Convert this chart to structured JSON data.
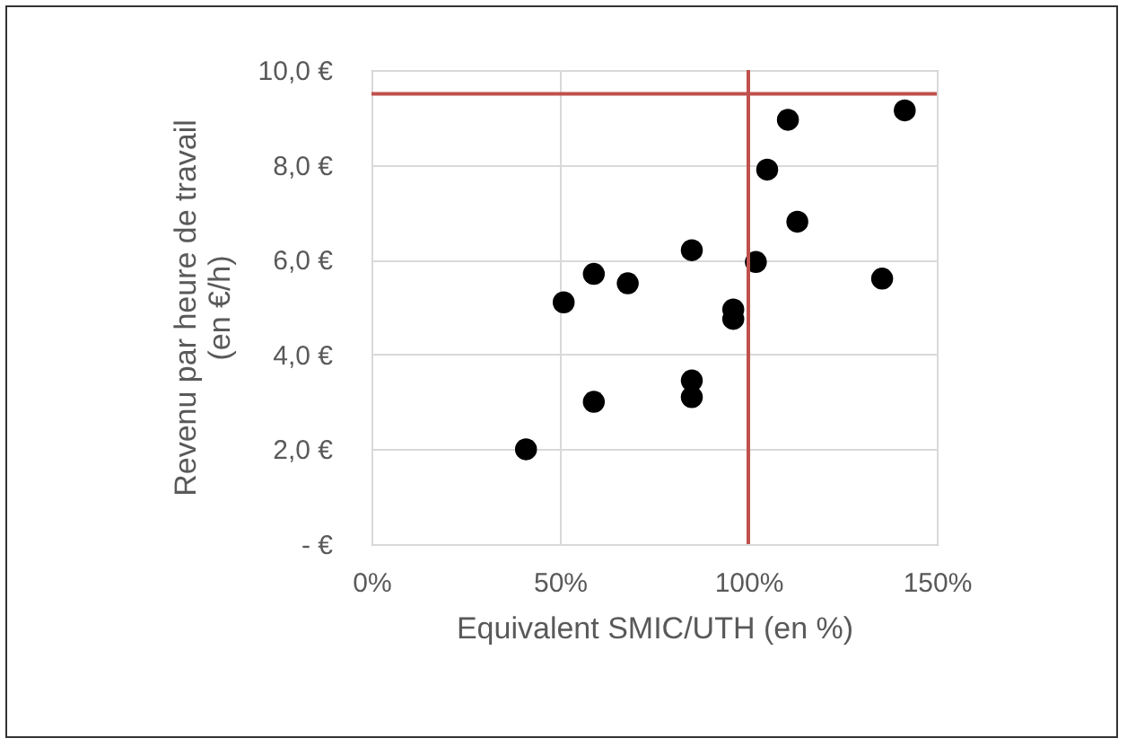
{
  "chart_data": {
    "type": "scatter",
    "xlabel": "Equivalent SMIC/UTH (en %)",
    "ylabel": "Revenu par heure de travail\n(en €/h)",
    "x": [
      41,
      59,
      51,
      59,
      68,
      85,
      85,
      85,
      96,
      96,
      102,
      105,
      110.5,
      113,
      135.5,
      141.5
    ],
    "series": [
      {
        "color": "#000000",
        "values": [
          2.0,
          3.0,
          5.1,
          5.7,
          5.5,
          6.2,
          3.45,
          3.1,
          4.95,
          4.75,
          5.95,
          7.9,
          8.95,
          6.8,
          5.6,
          9.15
        ]
      }
    ],
    "xlim": [
      0,
      150
    ],
    "ylim": [
      0,
      10
    ],
    "xticks": [
      {
        "value": 0,
        "label": "0%"
      },
      {
        "value": 50,
        "label": "50%"
      },
      {
        "value": 100,
        "label": "100%"
      },
      {
        "value": 150,
        "label": "150%"
      }
    ],
    "yticks": [
      {
        "value": 0,
        "label": "-  €"
      },
      {
        "value": 2,
        "label": "2,0 €"
      },
      {
        "value": 4,
        "label": "4,0 €"
      },
      {
        "value": 6,
        "label": "6,0 €"
      },
      {
        "value": 8,
        "label": "8,0 €"
      },
      {
        "value": 10,
        "label": "10,0 €"
      }
    ],
    "ref_lines": [
      {
        "axis": "y",
        "value": 9.5,
        "color": "#c0504d"
      },
      {
        "axis": "x",
        "value": 100,
        "color": "#c0504d"
      }
    ],
    "grid": true,
    "marker": "circle",
    "legend": false
  }
}
